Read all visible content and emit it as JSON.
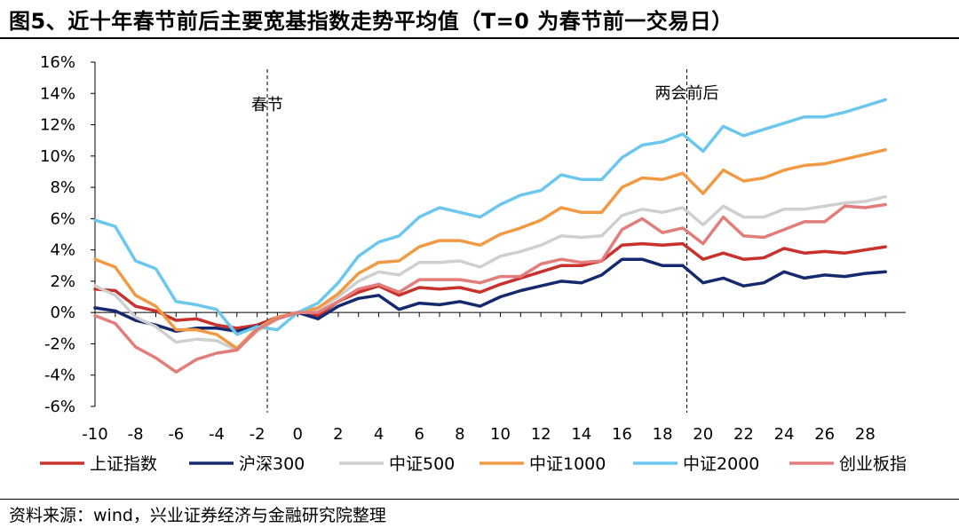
{
  "title": "图5、近十年春节前后主要宽基指数走势平均值（T=0 为春节前一交易日）",
  "source": "资料来源：wind，兴业证券经济与金融研究院整理",
  "chart_data": {
    "type": "line",
    "x": [
      -10,
      -9,
      -8,
      -7,
      -6,
      -5,
      -4,
      -3,
      -2,
      -1,
      0,
      1,
      2,
      3,
      4,
      5,
      6,
      7,
      8,
      9,
      10,
      11,
      12,
      13,
      14,
      15,
      16,
      17,
      18,
      19,
      20,
      21,
      22,
      23,
      24,
      25,
      26,
      27,
      28,
      29
    ],
    "x_tick_values": [
      -10,
      -8,
      -6,
      -4,
      -2,
      0,
      2,
      4,
      6,
      8,
      10,
      12,
      14,
      16,
      18,
      20,
      22,
      24,
      26,
      28
    ],
    "x_tick_labels": [
      "-10",
      "-8",
      "-6",
      "-4",
      "-2",
      "0",
      "2",
      "4",
      "6",
      "8",
      "10",
      "12",
      "14",
      "16",
      "18",
      "20",
      "22",
      "24",
      "26",
      "28"
    ],
    "ylim": [
      -6,
      16
    ],
    "y_ticks": [
      -6,
      -4,
      -2,
      0,
      2,
      4,
      6,
      8,
      10,
      12,
      14,
      16
    ],
    "y_tick_labels": [
      "-6%",
      "-4%",
      "-2%",
      "0%",
      "2%",
      "4%",
      "6%",
      "8%",
      "10%",
      "12%",
      "14%",
      "16%"
    ],
    "grid": false,
    "legend_position": "bottom",
    "annotations": [
      {
        "text": "春节",
        "x": -1.5
      },
      {
        "text": "两会前后",
        "x": 19.2
      }
    ],
    "series": [
      {
        "name": "上证指数",
        "color": "#c8312c",
        "values": [
          1.5,
          1.4,
          0.4,
          0.1,
          -0.5,
          -0.4,
          -0.8,
          -1.0,
          -0.8,
          -0.3,
          0,
          -0.2,
          0.7,
          1.3,
          1.7,
          1.1,
          1.6,
          1.5,
          1.6,
          1.3,
          1.8,
          2.2,
          2.6,
          3.0,
          3.0,
          3.3,
          4.3,
          4.4,
          4.3,
          4.4,
          3.4,
          3.8,
          3.4,
          3.5,
          4.1,
          3.8,
          3.9,
          3.8,
          4.0,
          4.2
        ]
      },
      {
        "name": "沪深300",
        "color": "#152a6e",
        "values": [
          0.3,
          0.1,
          -0.5,
          -0.8,
          -1.2,
          -1.0,
          -1.0,
          -1.2,
          -0.9,
          -0.4,
          0,
          -0.4,
          0.4,
          0.9,
          1.1,
          0.2,
          0.6,
          0.5,
          0.7,
          0.4,
          1.0,
          1.4,
          1.7,
          2.0,
          1.9,
          2.4,
          3.4,
          3.4,
          3.0,
          3.0,
          1.9,
          2.2,
          1.7,
          1.9,
          2.6,
          2.2,
          2.4,
          2.3,
          2.5,
          2.6
        ]
      },
      {
        "name": "中证500",
        "color": "#cfcfcf",
        "values": [
          1.7,
          1.1,
          -0.3,
          -0.9,
          -1.9,
          -1.7,
          -1.8,
          -2.4,
          -1.2,
          -0.4,
          0,
          0.2,
          1.0,
          2.0,
          2.6,
          2.4,
          3.2,
          3.2,
          3.3,
          2.9,
          3.6,
          3.9,
          4.3,
          4.9,
          4.8,
          4.9,
          6.2,
          6.6,
          6.4,
          6.7,
          5.6,
          6.8,
          6.1,
          6.1,
          6.6,
          6.6,
          6.8,
          7.0,
          7.1,
          7.4
        ]
      },
      {
        "name": "中证1000",
        "color": "#f29a43",
        "values": [
          3.4,
          2.9,
          1.1,
          0.4,
          -1.1,
          -1.1,
          -1.4,
          -2.3,
          -1.0,
          -0.3,
          0,
          0.3,
          1.2,
          2.5,
          3.2,
          3.3,
          4.2,
          4.6,
          4.6,
          4.3,
          5.0,
          5.4,
          5.9,
          6.7,
          6.4,
          6.4,
          8.0,
          8.6,
          8.5,
          8.9,
          7.6,
          9.1,
          8.4,
          8.6,
          9.1,
          9.4,
          9.5,
          9.8,
          10.1,
          10.4
        ]
      },
      {
        "name": "中证2000",
        "color": "#6cc7ef",
        "values": [
          5.9,
          5.5,
          3.3,
          2.8,
          0.7,
          0.5,
          0.2,
          -1.4,
          -0.9,
          -1.1,
          0,
          0.6,
          1.9,
          3.6,
          4.5,
          4.9,
          6.1,
          6.7,
          6.4,
          6.1,
          6.9,
          7.5,
          7.8,
          8.8,
          8.5,
          8.5,
          9.9,
          10.7,
          10.9,
          11.4,
          10.3,
          11.9,
          11.3,
          11.7,
          12.1,
          12.5,
          12.5,
          12.8,
          13.2,
          13.6
        ]
      },
      {
        "name": "创业板指",
        "color": "#e37d7b",
        "values": [
          -0.2,
          -0.7,
          -2.2,
          -2.9,
          -3.8,
          -3.0,
          -2.6,
          -2.4,
          -1.1,
          -0.4,
          0,
          0.0,
          0.7,
          1.5,
          1.8,
          1.3,
          2.1,
          2.1,
          2.1,
          1.9,
          2.3,
          2.3,
          3.1,
          3.4,
          3.2,
          3.3,
          5.3,
          6.0,
          5.1,
          5.4,
          4.4,
          6.1,
          4.9,
          4.8,
          5.3,
          5.8,
          5.8,
          6.8,
          6.7,
          6.9
        ]
      }
    ]
  }
}
